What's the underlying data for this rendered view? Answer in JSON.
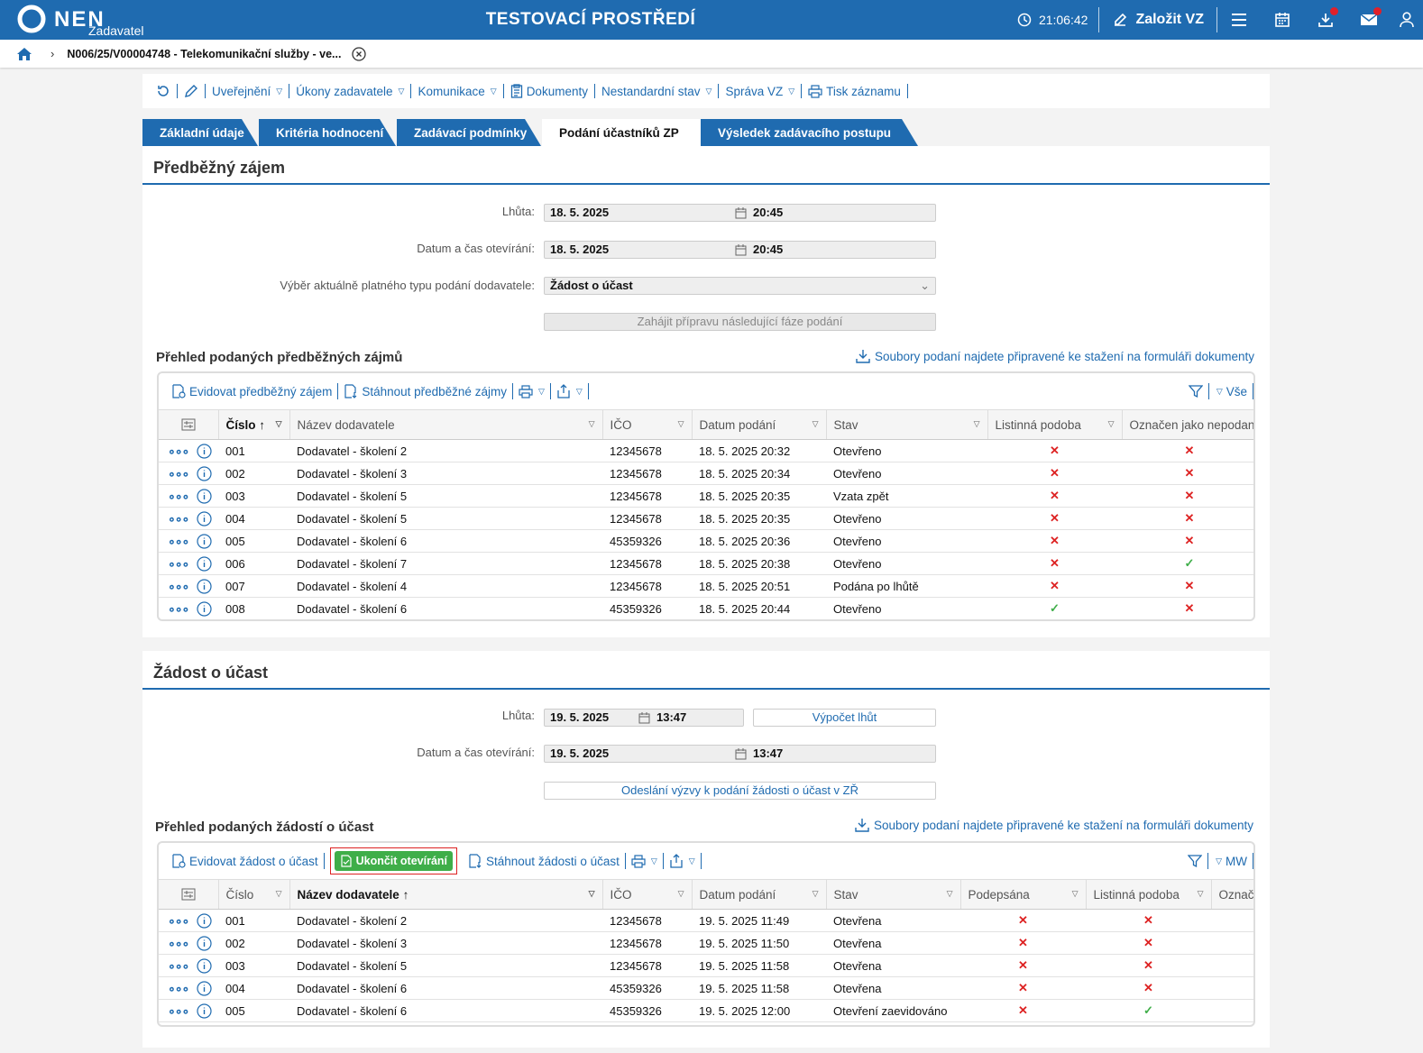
{
  "header": {
    "logo_text": "NEN",
    "logo_sub": "Zadavatel",
    "env_title": "TESTOVACÍ PROSTŘEDÍ",
    "clock": "21:06:42",
    "create_label": "Založit VZ"
  },
  "breadcrumb": {
    "text": "N006/25/V00004748 - Telekomunikační služby - ve..."
  },
  "menu": {
    "items": [
      "Uveřejnění",
      "Úkony zadavatele",
      "Komunikace",
      "Dokumenty",
      "Nestandardní stav",
      "Správa VZ",
      "Tisk záznamu"
    ]
  },
  "tabs": [
    "Základní údaje",
    "Kritéria hodnocení",
    "Zadávací podmínky",
    "Podání účastníků ZP",
    "Výsledek zadávacího postupu"
  ],
  "section1": {
    "title": "Předběžný zájem",
    "deadline_label": "Lhůta:",
    "deadline_date": "18. 5. 2025",
    "deadline_time": "20:45",
    "open_label": "Datum a čas otevírání:",
    "open_date": "18. 5. 2025",
    "open_time": "20:45",
    "type_label": "Výběr aktuálně platného typu podání dodavatele:",
    "type_value": "Žádost o účast",
    "next_phase_button": "Zahájit přípravu následující fáze podání",
    "overview_title": "Přehled podaných předběžných zájmů",
    "download_note": "Soubory podaní najdete připravené ke stažení na formuláři dokumenty",
    "toolbar": {
      "register": "Evidovat předběžný zájem",
      "download": "Stáhnout předběžné zájmy",
      "filter_all": "Vše"
    },
    "columns": [
      "Číslo",
      "Název dodavatele",
      "IČO",
      "Datum podání",
      "Stav",
      "Listinná podoba",
      "Označen jako nepodaný"
    ],
    "rows": [
      {
        "num": "001",
        "name": "Dodavatel - školení 2",
        "ico": "12345678",
        "date": "18. 5. 2025 20:32",
        "status": "Otevřeno",
        "paper": "✕",
        "marked": "✕"
      },
      {
        "num": "002",
        "name": "Dodavatel - školení 3",
        "ico": "12345678",
        "date": "18. 5. 2025 20:34",
        "status": "Otevřeno",
        "paper": "✕",
        "marked": "✕"
      },
      {
        "num": "003",
        "name": "Dodavatel - školení 5",
        "ico": "12345678",
        "date": "18. 5. 2025 20:35",
        "status": "Vzata zpět",
        "paper": "✕",
        "marked": "✕"
      },
      {
        "num": "004",
        "name": "Dodavatel - školení 5",
        "ico": "12345678",
        "date": "18. 5. 2025 20:35",
        "status": "Otevřeno",
        "paper": "✕",
        "marked": "✕"
      },
      {
        "num": "005",
        "name": "Dodavatel - školení 6",
        "ico": "45359326",
        "date": "18. 5. 2025 20:36",
        "status": "Otevřeno",
        "paper": "✕",
        "marked": "✕"
      },
      {
        "num": "006",
        "name": "Dodavatel - školení 7",
        "ico": "12345678",
        "date": "18. 5. 2025 20:38",
        "status": "Otevřeno",
        "paper": "✕",
        "marked": "✓"
      },
      {
        "num": "007",
        "name": "Dodavatel - školení 4",
        "ico": "12345678",
        "date": "18. 5. 2025 20:51",
        "status": "Podána po lhůtě",
        "paper": "✕",
        "marked": "✕"
      },
      {
        "num": "008",
        "name": "Dodavatel - školení 6",
        "ico": "45359326",
        "date": "18. 5. 2025 20:44",
        "status": "Otevřeno",
        "paper": "✓",
        "marked": "✕"
      }
    ]
  },
  "section2": {
    "title": "Žádost o účast",
    "deadline_label": "Lhůta:",
    "deadline_date": "19. 5. 2025",
    "deadline_time": "13:47",
    "calc_button": "Výpočet lhůt",
    "open_label": "Datum a čas otevírání:",
    "open_date": "19. 5. 2025",
    "open_time": "13:47",
    "invite_button": "Odeslání výzvy k podání žádosti o účast v ZŘ",
    "overview_title": "Přehled podaných žádostí o účast",
    "download_note": "Soubory podaní najdete připravené ke stažení na formuláři dokumenty",
    "toolbar": {
      "register": "Evidovat žádost o účast",
      "finish_opening": "Ukončit otevírání",
      "download": "Stáhnout žádosti o účast",
      "filter_mw": "MW"
    },
    "columns": [
      "Číslo",
      "Název dodavatele",
      "IČO",
      "Datum podání",
      "Stav",
      "Podepsána",
      "Listinná podoba",
      "Označe"
    ],
    "rows": [
      {
        "num": "001",
        "name": "Dodavatel - školení 2",
        "ico": "12345678",
        "date": "19. 5. 2025 11:49",
        "status": "Otevřena",
        "signed": "✕",
        "paper": "✕"
      },
      {
        "num": "002",
        "name": "Dodavatel - školení 3",
        "ico": "12345678",
        "date": "19. 5. 2025 11:50",
        "status": "Otevřena",
        "signed": "✕",
        "paper": "✕"
      },
      {
        "num": "003",
        "name": "Dodavatel - školení 5",
        "ico": "12345678",
        "date": "19. 5. 2025 11:58",
        "status": "Otevřena",
        "signed": "✕",
        "paper": "✕"
      },
      {
        "num": "004",
        "name": "Dodavatel - školení 6",
        "ico": "45359326",
        "date": "19. 5. 2025 11:58",
        "status": "Otevřena",
        "signed": "✕",
        "paper": "✕"
      },
      {
        "num": "005",
        "name": "Dodavatel - školení 6",
        "ico": "45359326",
        "date": "19. 5. 2025 12:00",
        "status": "Otevření zaevidováno",
        "signed": "✕",
        "paper": "✓"
      }
    ]
  },
  "colors": {
    "brand": "#1f6bb0",
    "accept": "#3fae49",
    "reject": "#dd2222"
  }
}
